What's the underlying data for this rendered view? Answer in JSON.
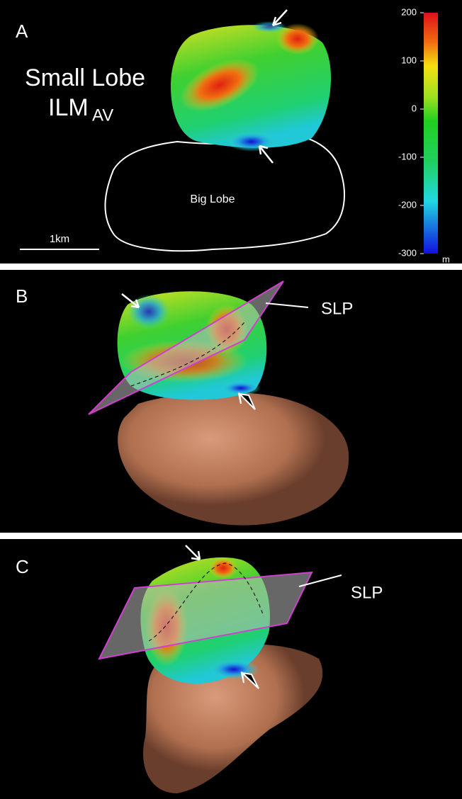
{
  "panels": [
    {
      "label": "A",
      "title": "Small Lobe",
      "subtitle": "ILM",
      "subscript": "AV",
      "annotation": "Big Lobe",
      "scale_bar": "1km"
    },
    {
      "label": "B",
      "plane_label": "SLP"
    },
    {
      "label": "C",
      "plane_label": "SLP"
    }
  ],
  "colorbar": {
    "range": [
      -300,
      200
    ],
    "ticks": [
      200,
      100,
      0,
      -100,
      -200,
      -300
    ],
    "unit": "m"
  }
}
